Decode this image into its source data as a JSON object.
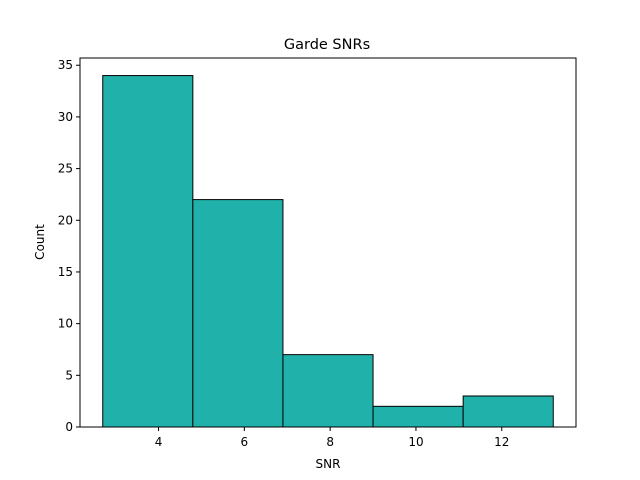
{
  "chart_data": {
    "type": "bar",
    "title": "Garde SNRs",
    "xlabel": "SNR",
    "ylabel": "Count",
    "bin_edges": [
      2.7,
      4.8,
      6.9,
      9.0,
      11.1,
      13.2
    ],
    "values": [
      34,
      22,
      7,
      2,
      3
    ],
    "xlim": [
      2.17,
      13.73
    ],
    "ylim": [
      0,
      35.7
    ],
    "xticks": [
      4,
      6,
      8,
      10,
      12
    ],
    "yticks": [
      0,
      5,
      10,
      15,
      20,
      25,
      30,
      35
    ],
    "bar_color": "#20b2aa",
    "edge_color": "#000000",
    "grid": false,
    "legend": false
  }
}
